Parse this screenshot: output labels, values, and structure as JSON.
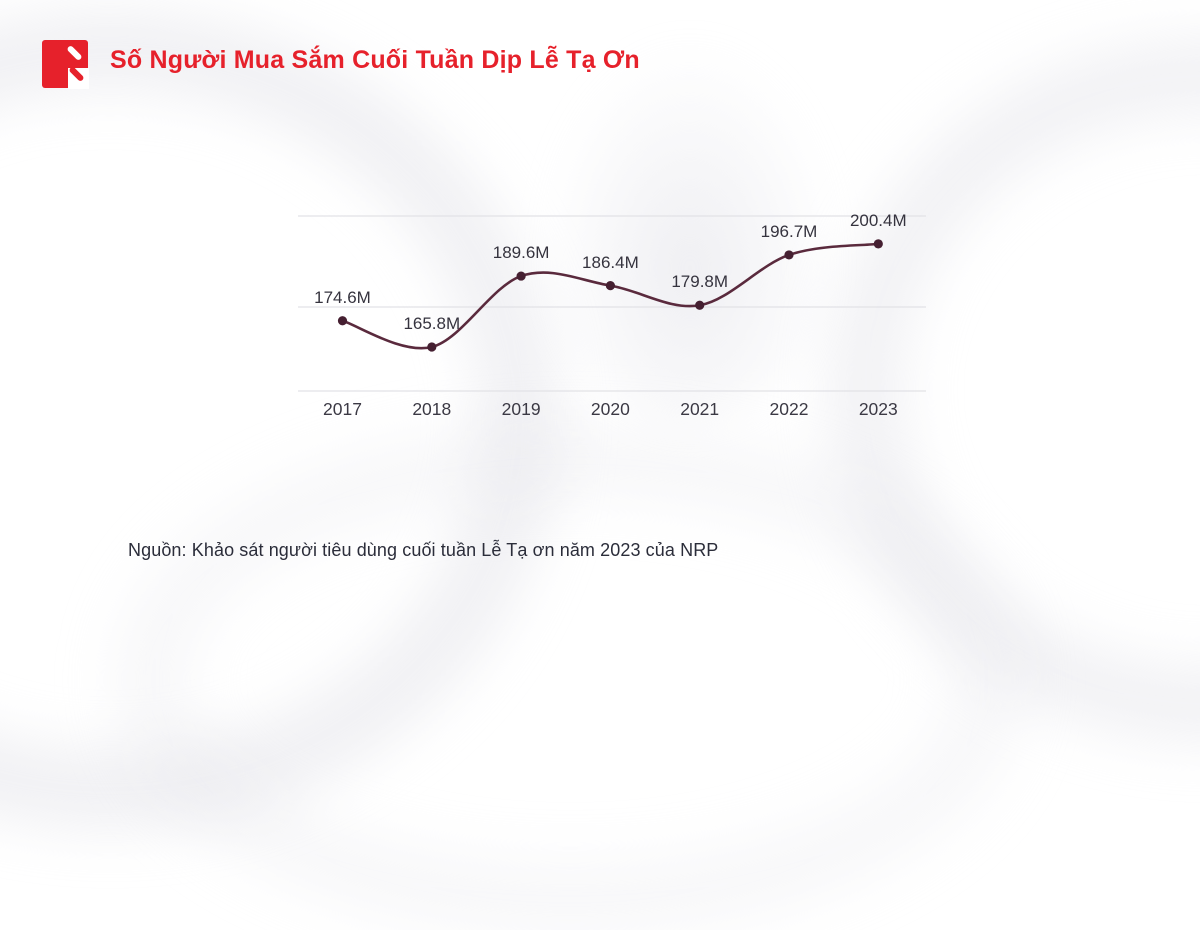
{
  "header": {
    "title": "Số Người Mua Sắm Cuối Tuần Dịp Lễ Tạ Ơn",
    "brand_color": "#e6212b",
    "logo": "red-square-double-slash-mark"
  },
  "chart_data": {
    "type": "line",
    "title": "Số Người Mua Sắm Cuối Tuần Dịp Lễ Tạ Ơn",
    "categories": [
      "2017",
      "2018",
      "2019",
      "2020",
      "2021",
      "2022",
      "2023"
    ],
    "values": [
      174.6,
      165.8,
      189.6,
      186.4,
      179.8,
      196.7,
      200.4
    ],
    "point_labels": [
      "174.6M",
      "165.8M",
      "189.6M",
      "186.4M",
      "179.8M",
      "196.7M",
      "200.4M"
    ],
    "unit": "M",
    "xlabel": "",
    "ylabel": "",
    "ylim": [
      150,
      210
    ],
    "grid": "horizontal",
    "gridline_count": 3,
    "legend": "none",
    "colors": {
      "line": "#5a2a3d",
      "point": "#451f31",
      "gridline": "#e2e2e6",
      "label_text": "#35333e",
      "axis_text": "#3b3944"
    }
  },
  "footer": {
    "source": "Nguồn: Khảo sát người tiêu dùng cuối tuần Lễ Tạ ơn năm 2023 của NRP"
  }
}
